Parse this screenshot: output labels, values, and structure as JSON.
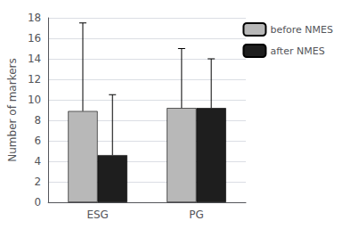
{
  "chart_data": {
    "type": "bar",
    "categories": [
      "ESG",
      "PG"
    ],
    "series": [
      {
        "name": "before NMES",
        "color": "#b8b8b8",
        "values": [
          8.9,
          9.2
        ],
        "errors_up": [
          8.6,
          5.8
        ]
      },
      {
        "name": "after NMES",
        "color": "#1e1e1e",
        "values": [
          4.6,
          9.2
        ],
        "errors_up": [
          5.9,
          4.8
        ]
      }
    ],
    "ylabel": "Number of markers",
    "ylim": [
      0,
      18
    ],
    "yticks": [
      0,
      2,
      4,
      6,
      8,
      10,
      12,
      14,
      16,
      18
    ],
    "grid": true,
    "legend": "right"
  }
}
